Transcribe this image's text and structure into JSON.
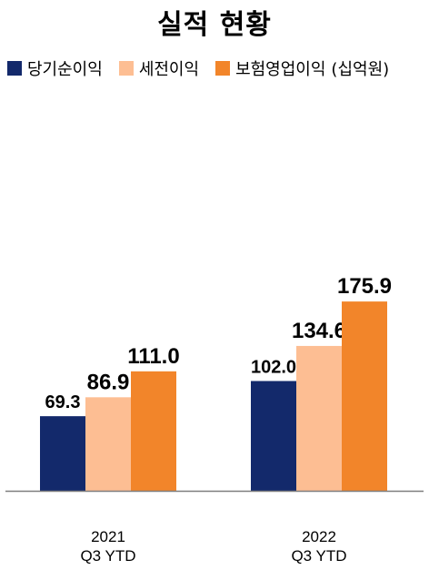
{
  "chart_data": {
    "type": "bar",
    "title": "실적 현황",
    "unit": "(십억원)",
    "categories": [
      [
        "2021",
        "Q3 YTD"
      ],
      [
        "2022",
        "Q3 YTD"
      ]
    ],
    "series": [
      {
        "name": "당기순이익",
        "color": "#13296B",
        "values": [
          69.3,
          102.0
        ]
      },
      {
        "name": "세전이익",
        "color": "#FDBE93",
        "values": [
          86.9,
          134.6
        ]
      },
      {
        "name": "보험영업이익",
        "color": "#F2852A",
        "values": [
          111.0,
          175.9
        ]
      }
    ],
    "value_labels": [
      [
        "69.3",
        "102.0"
      ],
      [
        "86.9",
        "134.6"
      ],
      [
        "111.0",
        "175.9"
      ]
    ],
    "ylim": [
      0,
      190
    ],
    "grid": false,
    "legend": "top-left"
  }
}
